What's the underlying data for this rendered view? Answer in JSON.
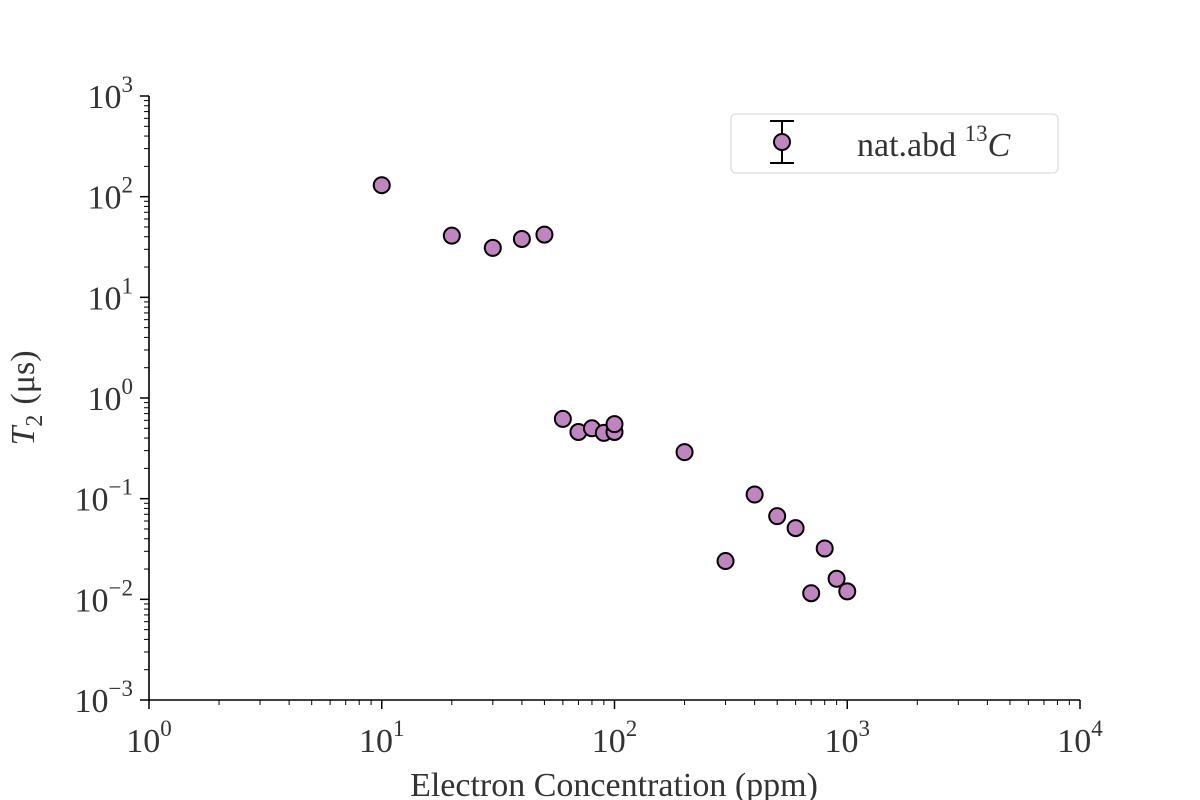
{
  "chart_data": {
    "type": "scatter",
    "title": "",
    "xlabel": "Electron Concentration (ppm)",
    "ylabel": {
      "symbol": "T",
      "subscript": "2",
      "unit": "(μs)"
    },
    "xscale": "log",
    "yscale": "log",
    "xlim": [
      1,
      10000
    ],
    "ylim": [
      0.001,
      1000
    ],
    "x_ticks": [
      {
        "value": 1,
        "base": "10",
        "exp": "0"
      },
      {
        "value": 10,
        "base": "10",
        "exp": "1"
      },
      {
        "value": 100,
        "base": "10",
        "exp": "2"
      },
      {
        "value": 1000,
        "base": "10",
        "exp": "3"
      },
      {
        "value": 10000,
        "base": "10",
        "exp": "4"
      }
    ],
    "y_ticks": [
      {
        "value": 0.001,
        "base": "10",
        "exp": "−3"
      },
      {
        "value": 0.01,
        "base": "10",
        "exp": "−2"
      },
      {
        "value": 0.1,
        "base": "10",
        "exp": "−1"
      },
      {
        "value": 1,
        "base": "10",
        "exp": "0"
      },
      {
        "value": 10,
        "base": "10",
        "exp": "1"
      },
      {
        "value": 100,
        "base": "10",
        "exp": "2"
      },
      {
        "value": 1000,
        "base": "10",
        "exp": "3"
      }
    ],
    "grid": false,
    "legend_position": "top-right",
    "series": [
      {
        "name": "nat.abd ¹³C",
        "legend": {
          "prefix": "nat.abd ",
          "sup": "13",
          "suffix": "C"
        },
        "color": "#c084c0",
        "edge_color": "#000000",
        "marker": "circle",
        "error_bars": "horizontal",
        "x_error_fraction": 0.065,
        "points": [
          {
            "x": 10,
            "y": 130
          },
          {
            "x": 20,
            "y": 41
          },
          {
            "x": 30,
            "y": 31
          },
          {
            "x": 40,
            "y": 38
          },
          {
            "x": 50,
            "y": 42
          },
          {
            "x": 60,
            "y": 0.62
          },
          {
            "x": 70,
            "y": 0.46
          },
          {
            "x": 80,
            "y": 0.5
          },
          {
            "x": 90,
            "y": 0.45
          },
          {
            "x": 100,
            "y": 0.46
          },
          {
            "x": 100,
            "y": 0.55
          },
          {
            "x": 200,
            "y": 0.29
          },
          {
            "x": 300,
            "y": 0.024
          },
          {
            "x": 400,
            "y": 0.11
          },
          {
            "x": 500,
            "y": 0.067
          },
          {
            "x": 600,
            "y": 0.051
          },
          {
            "x": 700,
            "y": 0.0115
          },
          {
            "x": 800,
            "y": 0.032
          },
          {
            "x": 900,
            "y": 0.016
          },
          {
            "x": 1000,
            "y": 0.012
          }
        ]
      }
    ]
  }
}
